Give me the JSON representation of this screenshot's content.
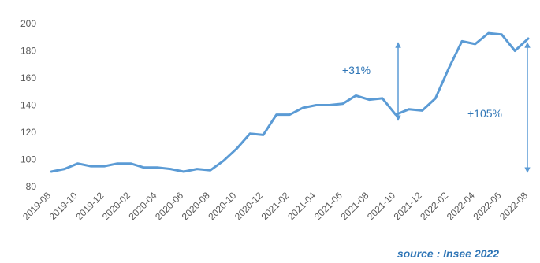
{
  "chart_data": {
    "type": "line",
    "x": [
      "2019-08",
      "2019-09",
      "2019-10",
      "2019-11",
      "2019-12",
      "2020-01",
      "2020-02",
      "2020-03",
      "2020-04",
      "2020-05",
      "2020-06",
      "2020-07",
      "2020-08",
      "2020-09",
      "2020-10",
      "2020-11",
      "2020-12",
      "2021-01",
      "2021-02",
      "2021-03",
      "2021-04",
      "2021-05",
      "2021-06",
      "2021-07",
      "2021-08",
      "2021-09",
      "2021-10",
      "2021-11",
      "2021-12",
      "2022-01",
      "2022-02",
      "2022-03",
      "2022-04",
      "2022-05",
      "2022-06",
      "2022-07",
      "2022-08"
    ],
    "x_tick_labels": [
      "2019-08",
      "2019-10",
      "2019-12",
      "2020-02",
      "2020-04",
      "2020-06",
      "2020-08",
      "2020-10",
      "2020-12",
      "2021-02",
      "2021-04",
      "2021-06",
      "2021-08",
      "2021-10",
      "2021-12",
      "2022-02",
      "2022-04",
      "2022-06",
      "2022-08"
    ],
    "series": [
      {
        "values": [
          91,
          93,
          97,
          95,
          95,
          97,
          97,
          94,
          94,
          93,
          91,
          93,
          92,
          99,
          108,
          119,
          118,
          133,
          133,
          138,
          140,
          140,
          141,
          147,
          144,
          145,
          133,
          137,
          136,
          145,
          167,
          187,
          185,
          193,
          192,
          180,
          189
        ]
      }
    ],
    "ylim": [
      80,
      200
    ],
    "yticks": [
      80,
      100,
      120,
      140,
      160,
      180,
      200
    ],
    "grid": false,
    "title": "",
    "xlabel": "",
    "ylabel": "",
    "line_color": "#5b9bd5",
    "annotation_color": "#2e75b6",
    "annotations": [
      {
        "text": "+31%",
        "from_x": "2021-10",
        "to_x": "2021-10",
        "y_from": 145,
        "y_to": 133
      },
      {
        "text": "+105%",
        "from_x": "2022-08",
        "to_x": "2022-08",
        "y_from": 189,
        "y_to": 92
      }
    ]
  },
  "source": "source : Insee 2022"
}
